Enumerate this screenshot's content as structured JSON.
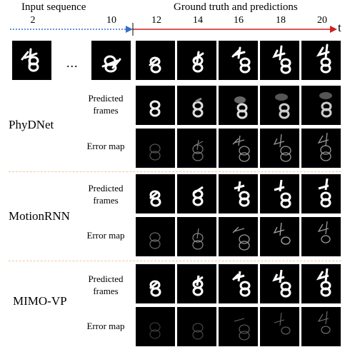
{
  "header": {
    "left": "Input sequence",
    "right": "Ground truth and predictions",
    "time_label": "t",
    "input_ticks": [
      "2",
      "10"
    ],
    "pred_ticks": [
      "12",
      "14",
      "16",
      "18",
      "20"
    ]
  },
  "ellipsis": "...",
  "rows": {
    "predicted_label": [
      "Predicted",
      "frames"
    ],
    "error_label": "Error map"
  },
  "models": [
    "PhyDNet",
    "MotionRNN",
    "MIMO-VP"
  ],
  "colors": {
    "input_axis": "#3a6fc4",
    "pred_axis": "#d02020",
    "separator": "#f0c9a0",
    "frame_bg": "#000000"
  }
}
